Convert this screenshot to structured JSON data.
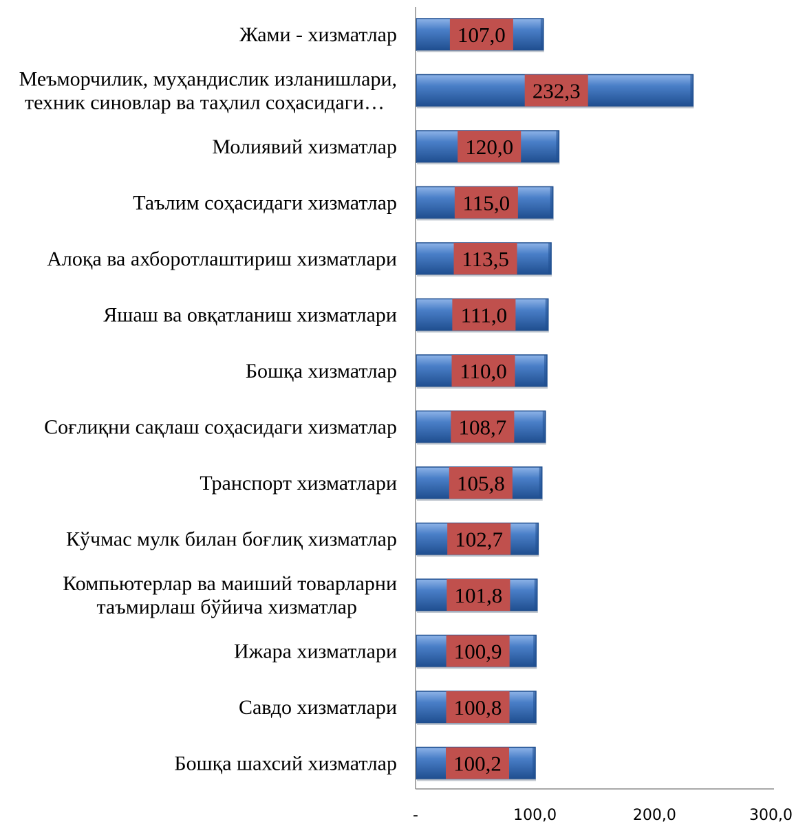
{
  "chart_data": {
    "type": "bar",
    "orientation": "horizontal",
    "title": "",
    "xlabel": "",
    "ylabel": "",
    "categories": [
      [
        "Жами - хизматлар"
      ],
      [
        "Меъморчилик, муҳандислик изланишлари,",
        "техник синовлар ва таҳлил соҳасидаги…"
      ],
      [
        "Молиявий  хизматлар"
      ],
      [
        "Таълим соҳасидаги хизматлар"
      ],
      [
        "Алоқа ва ахборотлаштириш хизматлари"
      ],
      [
        "Яшаш ва овқатланиш хизматлари"
      ],
      [
        "Бошқа хизматлар"
      ],
      [
        "Соғлиқни сақлаш соҳасидаги хизматлар"
      ],
      [
        "Транспорт хизматлари"
      ],
      [
        "Кўчмас мулк билан боғлиқ хизматлар"
      ],
      [
        "Компьютерлар ва маиший товарларни",
        "таъмирлаш бўйича хизматлар"
      ],
      [
        "Ижара хизматлари"
      ],
      [
        "Савдо хизматлари"
      ],
      [
        "Бошқа шахсий хизматлар"
      ]
    ],
    "values": [
      107.0,
      232.3,
      120.0,
      115.0,
      113.5,
      111.0,
      110.0,
      108.7,
      105.8,
      102.7,
      101.8,
      100.9,
      100.8,
      100.2
    ],
    "value_labels": [
      "107,0",
      "232,3",
      "120,0",
      "115,0",
      "113,5",
      "111,0",
      "110,0",
      "108,7",
      "105,8",
      "102,7",
      "101,8",
      "100,9",
      "100,8",
      "100,2"
    ],
    "xlim": [
      0,
      300
    ],
    "x_ticks": [
      0,
      100,
      200,
      300
    ],
    "x_tick_labels": [
      "-",
      "100,0",
      "200,0",
      "300,0"
    ],
    "grid": false,
    "legend": "none",
    "bar_color": "#4a7fc8",
    "bar_dark_color": "#1f4e8f",
    "label_box_color": "#c0504d"
  }
}
